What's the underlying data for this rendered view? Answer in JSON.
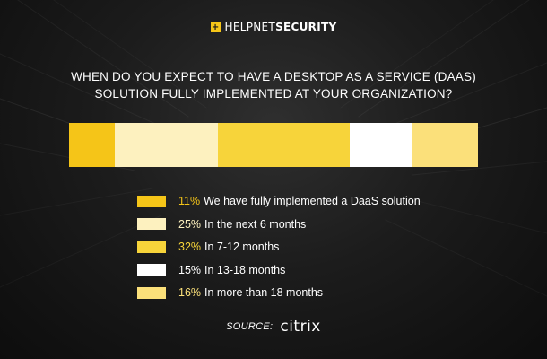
{
  "header": {
    "logo_mark": "+",
    "logo_text_thin": "HELPNET",
    "logo_text_bold": "SECURITY"
  },
  "chart_data": {
    "type": "bar",
    "orientation": "horizontal-stacked",
    "title_line1": "WHEN DO YOU EXPECT TO HAVE A DESKTOP AS A SERVICE (DAAS)",
    "title_line2": "SOLUTION FULLY IMPLEMENTED AT YOUR ORGANIZATION?",
    "xlabel": "",
    "ylabel": "",
    "unit": "%",
    "grid": false,
    "legend_placement": "bottom",
    "series": [
      {
        "label": "We have fully implemented a DaaS solution",
        "value": 11,
        "display": "11%",
        "color": "#f5c518",
        "pct_color": "#f5c518"
      },
      {
        "label": "In the next 6 months",
        "value": 25,
        "display": "25%",
        "color": "#fdf1bf",
        "pct_color": "#fdf1bf"
      },
      {
        "label": "In 7-12 months",
        "value": 32,
        "display": "32%",
        "color": "#f7d43a",
        "pct_color": "#f7d43a"
      },
      {
        "label": "In 13-18 months",
        "value": 15,
        "display": "15%",
        "color": "#ffffff",
        "pct_color": "#ffffff"
      },
      {
        "label": "In more than 18 months",
        "value": 16,
        "display": "16%",
        "color": "#fbe07a",
        "pct_color": "#fbe07a"
      }
    ]
  },
  "footer": {
    "source_label": "SOURCE:",
    "source_brand": "citrix"
  }
}
